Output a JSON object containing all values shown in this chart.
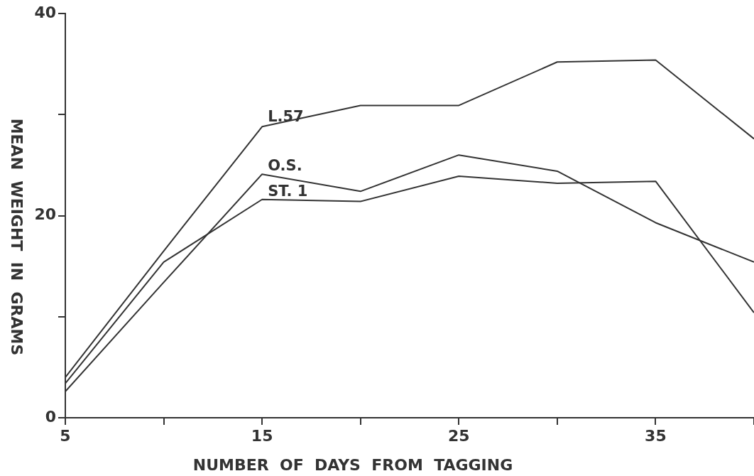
{
  "chart_data": {
    "type": "line",
    "xlabel": "NUMBER  OF  DAYS  FROM  TAGGING",
    "ylabel": "MEAN  WEIGHT  IN  GRAMS",
    "x": [
      5,
      10,
      15,
      20,
      25,
      30,
      35,
      40
    ],
    "series": [
      {
        "name": "L.57",
        "color": "#333333",
        "values": [
          4.0,
          16.5,
          28.8,
          30.9,
          30.9,
          35.2,
          35.4,
          27.6
        ]
      },
      {
        "name": "O.S.",
        "color": "#333333",
        "values": [
          2.6,
          13.4,
          24.1,
          22.4,
          26.0,
          24.4,
          19.3,
          15.4
        ]
      },
      {
        "name": "ST. 1",
        "color": "#333333",
        "values": [
          3.4,
          15.4,
          21.6,
          21.4,
          23.9,
          23.2,
          23.4,
          10.4
        ]
      }
    ],
    "xlim": [
      5,
      40
    ],
    "ylim": [
      0,
      40
    ],
    "xticks": [
      5,
      {
        "value": 10,
        "label": null
      },
      15,
      {
        "value": 20,
        "label": null
      },
      25,
      {
        "value": 30,
        "label": null
      },
      35,
      {
        "value": 40,
        "label": null
      }
    ],
    "yticks": [
      0,
      {
        "value": 10,
        "label": null
      },
      20,
      {
        "value": 30,
        "label": null
      },
      40
    ],
    "legend": false,
    "marker": "none",
    "line_style": "solid"
  }
}
